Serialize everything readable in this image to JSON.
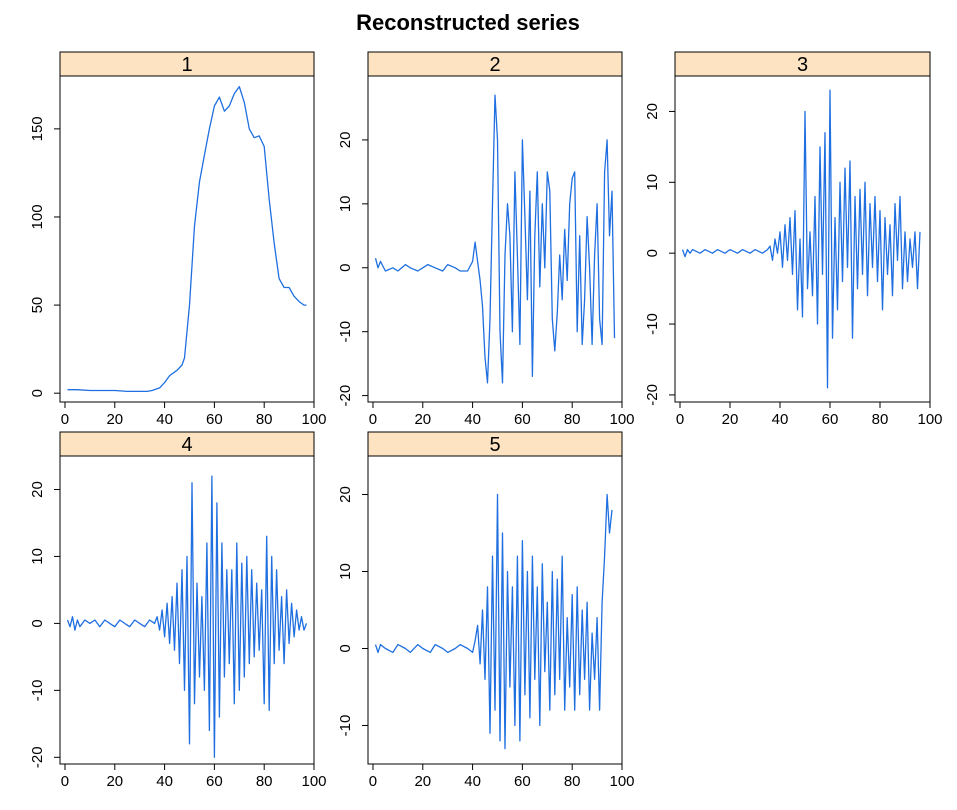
{
  "chart_data": {
    "type": "line",
    "title": "Reconstructed series",
    "xlabel": "",
    "ylabel": "",
    "grid": false,
    "legend": "none",
    "colors": {
      "line": "#1f6fe0",
      "strip": "#fde3c2",
      "axis": "#000000"
    },
    "panels": [
      {
        "label": "1",
        "xlim": [
          -2,
          100
        ],
        "ylim": [
          -5,
          180
        ],
        "xticks": [
          0,
          20,
          40,
          60,
          80,
          100
        ],
        "yticks": [
          0,
          50,
          100,
          150
        ],
        "x": [
          1,
          5,
          10,
          15,
          20,
          25,
          30,
          33,
          35,
          38,
          40,
          42,
          45,
          47,
          48,
          50,
          52,
          54,
          56,
          58,
          60,
          62,
          64,
          66,
          68,
          70,
          72,
          74,
          76,
          78,
          80,
          82,
          84,
          86,
          88,
          90,
          92,
          94,
          96,
          97
        ],
        "y": [
          2,
          2,
          1.5,
          1.5,
          1.5,
          1,
          1,
          1,
          1.5,
          3,
          6,
          10,
          13,
          16,
          20,
          50,
          95,
          120,
          135,
          150,
          163,
          168,
          160,
          163,
          170,
          174,
          165,
          150,
          145,
          146,
          140,
          110,
          85,
          65,
          60,
          60,
          55,
          52,
          50,
          50
        ]
      },
      {
        "label": "2",
        "xlim": [
          -2,
          100
        ],
        "ylim": [
          -21,
          30
        ],
        "xticks": [
          0,
          20,
          40,
          60,
          80,
          100
        ],
        "yticks": [
          -20,
          -10,
          0,
          10,
          20
        ],
        "x": [
          1,
          2,
          3,
          5,
          8,
          10,
          13,
          15,
          18,
          20,
          22,
          25,
          28,
          30,
          33,
          35,
          38,
          40,
          41,
          42,
          43,
          44,
          45,
          46,
          47,
          48,
          49,
          50,
          51,
          52,
          53,
          54,
          55,
          56,
          57,
          58,
          59,
          60,
          61,
          62,
          63,
          64,
          65,
          66,
          67,
          68,
          69,
          70,
          71,
          72,
          73,
          74,
          75,
          76,
          77,
          78,
          79,
          80,
          81,
          82,
          83,
          84,
          85,
          86,
          87,
          88,
          89,
          90,
          91,
          92,
          93,
          94,
          95,
          96,
          97
        ],
        "y": [
          1.5,
          0,
          1,
          -0.5,
          0,
          -0.5,
          0.5,
          0,
          -0.5,
          0,
          0.5,
          0,
          -0.5,
          0.5,
          0,
          -0.5,
          -0.5,
          1,
          4,
          1,
          -2,
          -6,
          -14,
          -18,
          -8,
          10,
          27,
          20,
          -10,
          -18,
          2,
          10,
          5,
          -10,
          15,
          2,
          -12,
          20,
          8,
          -5,
          12,
          -17,
          5,
          15,
          -3,
          10,
          0,
          15,
          12,
          -8,
          -13,
          -7,
          2,
          -5,
          6,
          -2,
          10,
          14,
          15,
          -10,
          5,
          -12,
          -5,
          8,
          0,
          -12,
          2,
          10,
          -8,
          -12,
          15,
          20,
          5,
          12,
          -11
        ]
      },
      {
        "label": "3",
        "xlim": [
          -2,
          100
        ],
        "ylim": [
          -21,
          25
        ],
        "xticks": [
          0,
          20,
          40,
          60,
          80,
          100
        ],
        "yticks": [
          -20,
          -10,
          0,
          10,
          20
        ],
        "x": [
          1,
          2,
          3,
          4,
          5,
          8,
          10,
          13,
          15,
          18,
          20,
          23,
          25,
          28,
          30,
          33,
          35,
          36,
          37,
          38,
          39,
          40,
          41,
          42,
          43,
          44,
          45,
          46,
          47,
          48,
          49,
          50,
          51,
          52,
          53,
          54,
          55,
          56,
          57,
          58,
          59,
          60,
          61,
          62,
          63,
          64,
          65,
          66,
          67,
          68,
          69,
          70,
          71,
          72,
          73,
          74,
          75,
          76,
          77,
          78,
          79,
          80,
          81,
          82,
          83,
          84,
          85,
          86,
          87,
          88,
          89,
          90,
          91,
          92,
          93,
          94,
          95,
          96
        ],
        "y": [
          0.5,
          -0.5,
          0.5,
          0,
          0.5,
          0,
          0.5,
          0,
          0.5,
          0,
          0.5,
          0,
          0.5,
          0,
          0.5,
          0,
          0.5,
          1,
          -1,
          2,
          0,
          3,
          -2,
          4,
          -1,
          5,
          -3,
          6,
          -8,
          2,
          -9,
          20,
          -5,
          3,
          -6,
          8,
          -10,
          15,
          -3,
          17,
          -19,
          23,
          -12,
          5,
          -8,
          10,
          -4,
          12,
          -2,
          13,
          -12,
          8,
          -5,
          9,
          -3,
          10,
          -6,
          7,
          -2,
          8,
          -4,
          6,
          -8,
          5,
          -3,
          4,
          -6,
          7,
          -1,
          8,
          -5,
          3,
          -4,
          2,
          -2,
          3,
          -5,
          3
        ]
      },
      {
        "label": "4",
        "xlim": [
          -2,
          100
        ],
        "ylim": [
          -21,
          25
        ],
        "xticks": [
          0,
          20,
          40,
          60,
          80,
          100
        ],
        "yticks": [
          -20,
          -10,
          0,
          10,
          20
        ],
        "x": [
          1,
          2,
          3,
          4,
          5,
          6,
          8,
          10,
          12,
          14,
          16,
          18,
          20,
          22,
          24,
          26,
          28,
          30,
          32,
          34,
          36,
          37,
          38,
          39,
          40,
          41,
          42,
          43,
          44,
          45,
          46,
          47,
          48,
          49,
          50,
          51,
          52,
          53,
          54,
          55,
          56,
          57,
          58,
          59,
          60,
          61,
          62,
          63,
          64,
          65,
          66,
          67,
          68,
          69,
          70,
          71,
          72,
          73,
          74,
          75,
          76,
          77,
          78,
          79,
          80,
          81,
          82,
          83,
          84,
          85,
          86,
          87,
          88,
          89,
          90,
          91,
          92,
          93,
          94,
          95,
          96,
          97
        ],
        "y": [
          0.5,
          -0.5,
          1,
          -1,
          0.5,
          -0.5,
          0.5,
          0,
          0.5,
          -0.5,
          0.5,
          0,
          -0.5,
          0.5,
          0,
          -0.5,
          0.5,
          0,
          -0.5,
          0.5,
          0,
          1,
          -1,
          2,
          -2,
          3,
          -3,
          4,
          -4,
          6,
          -6,
          8,
          -10,
          10,
          -18,
          21,
          -12,
          6,
          -8,
          4,
          -10,
          12,
          -16,
          22,
          -20,
          18,
          -14,
          12,
          -8,
          8,
          -6,
          8,
          -12,
          12,
          -10,
          9,
          -8,
          10,
          -6,
          8,
          -5,
          6,
          -4,
          5,
          -12,
          13,
          -13,
          10,
          -6,
          8,
          -4,
          4,
          -6,
          5,
          -3,
          3,
          -2,
          2,
          -1,
          1,
          -1,
          0
        ]
      },
      {
        "label": "5",
        "xlim": [
          -2,
          100
        ],
        "ylim": [
          -15,
          25
        ],
        "xticks": [
          0,
          20,
          40,
          60,
          80,
          100
        ],
        "yticks": [
          -10,
          0,
          10,
          20
        ],
        "x": [
          1,
          2,
          3,
          5,
          8,
          10,
          13,
          15,
          18,
          20,
          23,
          25,
          28,
          30,
          33,
          35,
          38,
          40,
          41,
          42,
          43,
          44,
          45,
          46,
          47,
          48,
          49,
          50,
          51,
          52,
          53,
          54,
          55,
          56,
          57,
          58,
          59,
          60,
          61,
          62,
          63,
          64,
          65,
          66,
          67,
          68,
          69,
          70,
          71,
          72,
          73,
          74,
          75,
          76,
          77,
          78,
          79,
          80,
          81,
          82,
          83,
          84,
          85,
          86,
          87,
          88,
          89,
          90,
          91,
          92,
          93,
          94,
          95,
          96
        ],
        "y": [
          0.5,
          -0.5,
          0.5,
          0,
          -0.5,
          0.5,
          0,
          -0.5,
          0.5,
          0,
          -0.5,
          0.5,
          0,
          -0.5,
          0,
          0.5,
          0,
          -0.5,
          1,
          3,
          -2,
          5,
          -4,
          8,
          -11,
          12,
          -8,
          20,
          -12,
          15,
          -13,
          10,
          -5,
          8,
          -10,
          12,
          -12,
          14,
          -6,
          10,
          -9,
          12,
          -4,
          8,
          -10,
          11,
          -3,
          6,
          -8,
          10,
          -6,
          9,
          -4,
          12,
          -8,
          4,
          -5,
          7,
          -8,
          8,
          -6,
          5,
          -4,
          6,
          -8,
          2,
          -4,
          4,
          -8,
          6,
          12,
          20,
          15,
          18
        ]
      }
    ]
  }
}
